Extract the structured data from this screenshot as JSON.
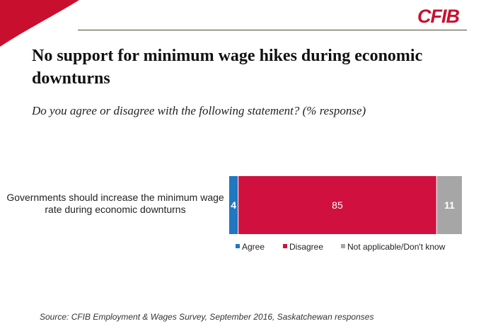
{
  "brand": {
    "logo_text": "CFIB",
    "accent_color": "#c8102e"
  },
  "page": {
    "title": "No support for minimum wage hikes during economic downturns",
    "subtitle": "Do you agree or disagree with the following statement? (% response)",
    "source": "Source: CFIB Employment & Wages Survey, September 2016, Saskatchewan responses"
  },
  "chart_data": {
    "type": "bar",
    "orientation": "horizontal",
    "stacked": true,
    "categories": [
      "Governments should increase the minimum wage rate during economic downturns"
    ],
    "series": [
      {
        "name": "Agree",
        "values": [
          4
        ],
        "color": "#1f78c1"
      },
      {
        "name": "Disagree",
        "values": [
          85
        ],
        "color": "#d0103f"
      },
      {
        "name": "Not applicable/Don't know",
        "values": [
          11
        ],
        "color": "#a6a6a6"
      }
    ],
    "xlim": [
      0,
      100
    ],
    "grid": false,
    "legend_position": "bottom"
  }
}
